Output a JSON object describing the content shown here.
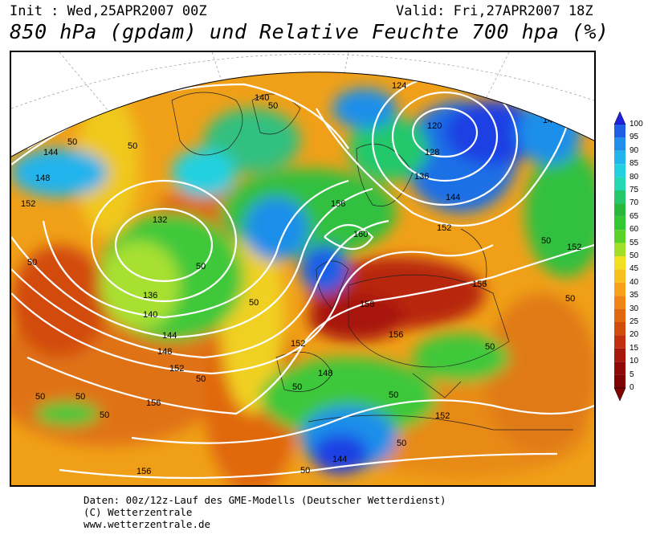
{
  "header": {
    "init": "Init : Wed,25APR2007 00Z",
    "valid": "Valid: Fri,27APR2007 18Z",
    "title": "850 hPa (gpdam) und Relative Feuchte 700 hpa (%)"
  },
  "footer": {
    "line1": "Daten: 00z/12z-Lauf des GME-Modells (Deutscher Wetterdienst)",
    "line2": "(C) Wetterzentrale",
    "line3": "www.wetterzentrale.de"
  },
  "legend": {
    "levels": [
      "100",
      "95",
      "90",
      "85",
      "80",
      "75",
      "70",
      "65",
      "60",
      "55",
      "50",
      "45",
      "40",
      "35",
      "30",
      "25",
      "20",
      "15",
      "10",
      "5",
      "0"
    ],
    "colors": [
      "#2020e0",
      "#1e5fe6",
      "#1f8fea",
      "#22b4ec",
      "#22d0e0",
      "#24d8b4",
      "#24c86a",
      "#27b83c",
      "#32c832",
      "#5ad22a",
      "#a0e028",
      "#f0e020",
      "#f8c01c",
      "#f8a018",
      "#f08414",
      "#e06810",
      "#d24c0e",
      "#c0300c",
      "#a8180a",
      "#900808",
      "#800404"
    ]
  },
  "map": {
    "contour_labels": [
      "132",
      "140",
      "148",
      "156",
      "160",
      "124",
      "120",
      "128",
      "136",
      "144",
      "152",
      "50"
    ]
  }
}
